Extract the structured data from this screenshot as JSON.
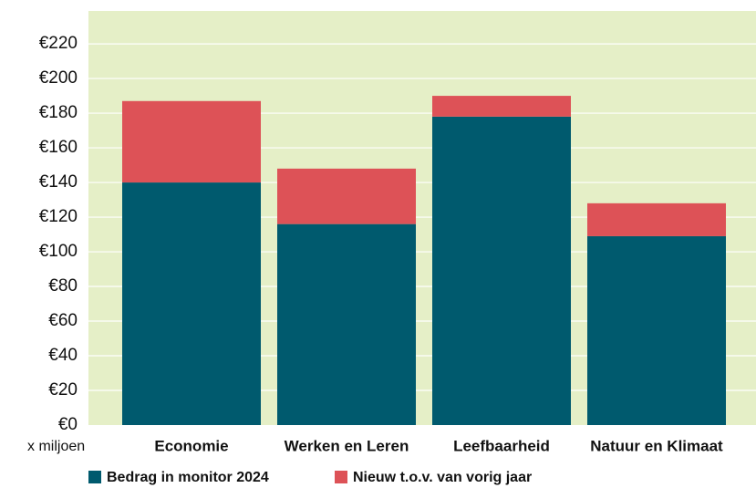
{
  "chart_data": {
    "type": "stacked-bar",
    "y_unit_label": "x miljoen",
    "categories": [
      "Economie",
      "Werken en Leren",
      "Leefbaarheid",
      "Natuur en Klimaat"
    ],
    "series": [
      {
        "name": "Bedrag in monitor 2024",
        "color": "#005a6e",
        "values": [
          140,
          116,
          178,
          109
        ]
      },
      {
        "name": "Nieuw t.o.v. van vorig jaar",
        "color": "#dd5257",
        "values": [
          47,
          32,
          12,
          19
        ]
      }
    ],
    "ylim": [
      0,
      239
    ],
    "yticks": [
      {
        "value": 0,
        "label": "€0"
      },
      {
        "value": 20,
        "label": "€20"
      },
      {
        "value": 40,
        "label": "€40"
      },
      {
        "value": 60,
        "label": "€60"
      },
      {
        "value": 80,
        "label": "€80"
      },
      {
        "value": 100,
        "label": "€100"
      },
      {
        "value": 120,
        "label": "€120"
      },
      {
        "value": 140,
        "label": "€140"
      },
      {
        "value": 160,
        "label": "€160"
      },
      {
        "value": 180,
        "label": "€180"
      },
      {
        "value": 200,
        "label": "€200"
      },
      {
        "value": 220,
        "label": "€220"
      }
    ],
    "grid": true,
    "background": "#e5efc7"
  }
}
